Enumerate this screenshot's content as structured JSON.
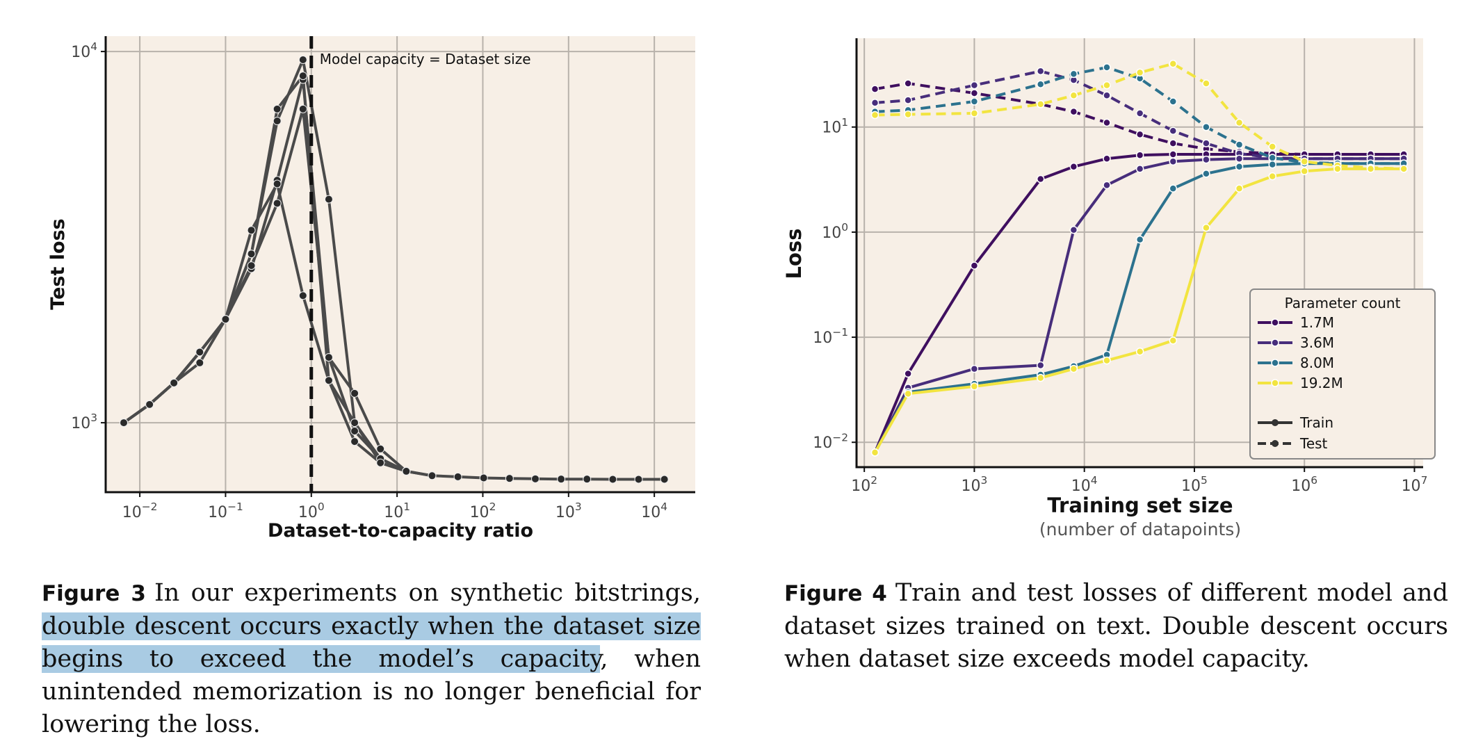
{
  "figure3": {
    "caption": {
      "label": "Figure 3",
      "text_before": "In our experiments on synthetic bitstrings, ",
      "text_highlighted": "double descent occurs exactly when the dataset size begins to exceed the model’s capacity",
      "text_after": ", when unintended memorization is no longer beneficial for lowering the loss."
    },
    "highlight_color": "#a9cbe3"
  },
  "figure4": {
    "caption": {
      "label": "Figure 4",
      "text": "Train and test losses of different model and dataset sizes trained on text. Double descent occurs when dataset size exceeds model capacity."
    }
  },
  "chart_data": [
    {
      "type": "line",
      "xlabel": "Dataset-to-capacity ratio",
      "ylabel": "Test loss",
      "x_scale": "log",
      "y_scale": "log",
      "xlim": [
        0.004,
        30000
      ],
      "ylim": [
        650,
        11000
      ],
      "x_ticks": [
        {
          "value": 0.01,
          "base": "10",
          "exp": "−2"
        },
        {
          "value": 0.1,
          "base": "10",
          "exp": "−1"
        },
        {
          "value": 1,
          "base": "10",
          "exp": "0"
        },
        {
          "value": 10,
          "base": "10",
          "exp": "1"
        },
        {
          "value": 100,
          "base": "10",
          "exp": "2"
        },
        {
          "value": 1000,
          "base": "10",
          "exp": "3"
        },
        {
          "value": 10000,
          "base": "10",
          "exp": "4"
        }
      ],
      "y_ticks": [
        {
          "value": 1000,
          "base": "10",
          "exp": "3"
        },
        {
          "value": 10000,
          "base": "10",
          "exp": "4"
        }
      ],
      "grid": true,
      "background": "#f7efe6",
      "line_color": "#4a4a4a",
      "marker_color": "#2a2a2a",
      "annotation": {
        "text": "Model capacity = Dataset size",
        "x": 1
      },
      "series": [
        {
          "x": [
            0.0065,
            0.013,
            0.025,
            0.05,
            0.1,
            0.2,
            0.4,
            0.8,
            1.6,
            3.2,
            6.4,
            12.8,
            25.6,
            51.2,
            102.4,
            204.8,
            409.6,
            819.2,
            1638.4,
            3276.8,
            6553.6,
            13107.2
          ],
          "y": [
            1000,
            1120,
            1280,
            1550,
            1900,
            2600,
            4500,
            8400,
            1500,
            950,
            800,
            740,
            720,
            715,
            710,
            708,
            706,
            705,
            705,
            704,
            704,
            704
          ]
        },
        {
          "x": [
            0.0065,
            0.013,
            0.025,
            0.05,
            0.1,
            0.2,
            0.4,
            0.8,
            1.6,
            3.2,
            6.4,
            12.8
          ],
          "y": [
            1000,
            1120,
            1280,
            1550,
            1900,
            2850,
            6500,
            9500,
            4000,
            1000,
            780,
            740
          ]
        },
        {
          "x": [
            0.0065,
            0.013,
            0.025,
            0.05,
            0.1,
            0.2,
            0.4,
            0.8,
            1.6,
            3.2,
            6.4,
            12.8,
            25.6
          ],
          "y": [
            1000,
            1120,
            1280,
            1450,
            1900,
            2850,
            7000,
            8600,
            1300,
            1000,
            800,
            740,
            720
          ]
        },
        {
          "x": [
            0.0065,
            0.013,
            0.025,
            0.05,
            0.1,
            0.2,
            0.4,
            0.8,
            1.6,
            3.2,
            6.4,
            12.8
          ],
          "y": [
            1000,
            1120,
            1280,
            1550,
            1900,
            3300,
            4400,
            2200,
            1300,
            890,
            780,
            740
          ]
        },
        {
          "x": [
            0.0065,
            0.013,
            0.025,
            0.05,
            0.1,
            0.2,
            0.4,
            0.8,
            1.6,
            3.2,
            6.4,
            12.8
          ],
          "y": [
            1000,
            1120,
            1280,
            1550,
            1900,
            2650,
            3900,
            7000,
            1500,
            1200,
            850,
            740
          ]
        }
      ]
    },
    {
      "type": "line",
      "xlabel": "Training set size",
      "xlabel_sub": "(number of datapoints)",
      "ylabel": "Loss",
      "x_scale": "log",
      "y_scale": "log",
      "xlim": [
        85,
        12000000
      ],
      "ylim": [
        0.0058,
        70
      ],
      "x_ticks": [
        {
          "value": 100,
          "base": "10",
          "exp": "2"
        },
        {
          "value": 1000,
          "base": "10",
          "exp": "3"
        },
        {
          "value": 10000,
          "base": "10",
          "exp": "4"
        },
        {
          "value": 100000,
          "base": "10",
          "exp": "5"
        },
        {
          "value": 1000000,
          "base": "10",
          "exp": "6"
        },
        {
          "value": 10000000,
          "base": "10",
          "exp": "7"
        }
      ],
      "y_ticks": [
        {
          "value": 0.01,
          "base": "10",
          "exp": "−2"
        },
        {
          "value": 0.1,
          "base": "10",
          "exp": "−1"
        },
        {
          "value": 1,
          "base": "10",
          "exp": "0"
        },
        {
          "value": 10,
          "base": "10",
          "exp": "1"
        }
      ],
      "grid": true,
      "background": "#f7efe6",
      "legend": {
        "position": "lower-right",
        "title": "Parameter count",
        "style_entries": [
          {
            "label": "Train",
            "dash": false
          },
          {
            "label": "Test",
            "dash": true
          }
        ]
      },
      "series": [
        {
          "name": "1.7M",
          "color": "#3f0f5f",
          "train": {
            "x": [
              125,
              250,
              1000,
              4000,
              8000,
              16000,
              32000,
              64000,
              128000,
              256000,
              512000,
              1000000,
              2000000,
              4000000,
              8000000
            ],
            "y": [
              0.008,
              0.045,
              0.48,
              3.2,
              4.2,
              5.0,
              5.4,
              5.5,
              5.5,
              5.5,
              5.5,
              5.5,
              5.5,
              5.5,
              5.5
            ]
          },
          "test": {
            "x": [
              125,
              250,
              1000,
              4000,
              8000,
              16000,
              32000,
              64000,
              128000,
              256000,
              512000,
              1000000,
              2000000,
              4000000,
              8000000
            ],
            "y": [
              23,
              26,
              21,
              16.5,
              14,
              11,
              8.5,
              7,
              6.2,
              5.8,
              5.6,
              5.5,
              5.5,
              5.5,
              5.5
            ]
          }
        },
        {
          "name": "3.6M",
          "color": "#472d7b",
          "train": {
            "x": [
              125,
              250,
              1000,
              4000,
              8000,
              16000,
              32000,
              64000,
              128000,
              256000,
              512000,
              1000000,
              2000000,
              4000000,
              8000000
            ],
            "y": [
              0.008,
              0.033,
              0.05,
              0.054,
              1.05,
              2.8,
              4.0,
              4.7,
              4.9,
              5.0,
              5.0,
              5.0,
              5.0,
              5.0,
              5.0
            ]
          },
          "test": {
            "x": [
              125,
              250,
              1000,
              4000,
              8000,
              16000,
              32000,
              64000,
              128000,
              256000,
              512000,
              1000000,
              2000000,
              4000000,
              8000000
            ],
            "y": [
              17,
              18,
              25,
              34,
              28,
              20,
              13.5,
              9.2,
              7,
              5.6,
              5.1,
              5.0,
              5.0,
              5.0,
              5.0
            ]
          }
        },
        {
          "name": "8.0M",
          "color": "#2c728e",
          "train": {
            "x": [
              125,
              250,
              1000,
              4000,
              8000,
              16000,
              32000,
              64000,
              128000,
              256000,
              512000,
              1000000,
              2000000,
              4000000,
              8000000
            ],
            "y": [
              0.008,
              0.03,
              0.036,
              0.044,
              0.053,
              0.068,
              0.85,
              2.6,
              3.6,
              4.2,
              4.4,
              4.5,
              4.5,
              4.5,
              4.5
            ]
          },
          "test": {
            "x": [
              125,
              250,
              1000,
              4000,
              8000,
              16000,
              32000,
              64000,
              128000,
              256000,
              512000,
              1000000,
              2000000,
              4000000,
              8000000
            ],
            "y": [
              14,
              14.5,
              17.5,
              25.5,
              32,
              37,
              29,
              17.5,
              10,
              6.8,
              5.1,
              4.6,
              4.5,
              4.5,
              4.5
            ]
          }
        },
        {
          "name": "19.2M",
          "color": "#f2e440",
          "train": {
            "x": [
              125,
              250,
              1000,
              4000,
              8000,
              16000,
              32000,
              64000,
              128000,
              256000,
              512000,
              1000000,
              2000000,
              4000000,
              8000000
            ],
            "y": [
              0.008,
              0.029,
              0.034,
              0.041,
              0.05,
              0.06,
              0.073,
              0.093,
              1.1,
              2.6,
              3.4,
              3.8,
              4.0,
              4.0,
              4.0
            ]
          },
          "test": {
            "x": [
              125,
              250,
              1000,
              4000,
              8000,
              16000,
              32000,
              64000,
              128000,
              256000,
              512000,
              1000000,
              2000000,
              4000000,
              8000000
            ],
            "y": [
              13,
              13.2,
              13.5,
              16.5,
              20,
              25,
              33,
              40,
              26,
              11,
              6.5,
              4.7,
              4.3,
              4.1,
              4.0
            ]
          }
        }
      ]
    }
  ]
}
